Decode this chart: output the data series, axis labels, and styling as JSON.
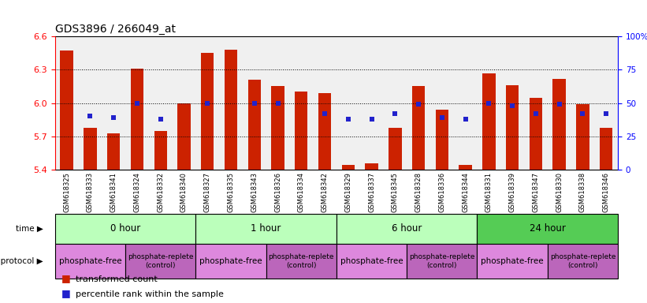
{
  "title": "GDS3896 / 266049_at",
  "samples": [
    "GSM618325",
    "GSM618333",
    "GSM618341",
    "GSM618324",
    "GSM618332",
    "GSM618340",
    "GSM618327",
    "GSM618335",
    "GSM618343",
    "GSM618326",
    "GSM618334",
    "GSM618342",
    "GSM618329",
    "GSM618337",
    "GSM618345",
    "GSM618328",
    "GSM618336",
    "GSM618344",
    "GSM618331",
    "GSM618339",
    "GSM618347",
    "GSM618330",
    "GSM618338",
    "GSM618346"
  ],
  "bar_values": [
    6.47,
    5.78,
    5.73,
    6.31,
    5.75,
    6.0,
    6.45,
    6.48,
    6.21,
    6.15,
    6.1,
    6.09,
    5.44,
    5.46,
    5.78,
    6.15,
    5.94,
    5.44,
    6.27,
    6.16,
    6.05,
    6.22,
    5.99,
    5.78
  ],
  "percentile_values": [
    null,
    0.4,
    0.39,
    0.5,
    0.38,
    null,
    0.5,
    null,
    0.5,
    0.5,
    null,
    0.42,
    0.38,
    0.38,
    0.42,
    0.49,
    0.39,
    0.38,
    0.5,
    0.48,
    0.42,
    0.49,
    0.42,
    0.42
  ],
  "time_groups": [
    {
      "label": "0 hour",
      "start": 0,
      "end": 6,
      "color": "#bbffbb"
    },
    {
      "label": "1 hour",
      "start": 6,
      "end": 12,
      "color": "#bbffbb"
    },
    {
      "label": "6 hour",
      "start": 12,
      "end": 18,
      "color": "#bbffbb"
    },
    {
      "label": "24 hour",
      "start": 18,
      "end": 24,
      "color": "#55cc55"
    }
  ],
  "growth_groups": [
    {
      "label": "phosphate-free",
      "start": 0,
      "end": 3,
      "color": "#dd88dd",
      "fontsize": 7.5
    },
    {
      "label": "phosphate-replete\n(control)",
      "start": 3,
      "end": 6,
      "color": "#bb66bb",
      "fontsize": 6.5
    },
    {
      "label": "phosphate-free",
      "start": 6,
      "end": 9,
      "color": "#dd88dd",
      "fontsize": 7.5
    },
    {
      "label": "phosphate-replete\n(control)",
      "start": 9,
      "end": 12,
      "color": "#bb66bb",
      "fontsize": 6.5
    },
    {
      "label": "phosphate-free",
      "start": 12,
      "end": 15,
      "color": "#dd88dd",
      "fontsize": 7.5
    },
    {
      "label": "phosphate-replete\n(control)",
      "start": 15,
      "end": 18,
      "color": "#bb66bb",
      "fontsize": 6.5
    },
    {
      "label": "phosphate-free",
      "start": 18,
      "end": 21,
      "color": "#dd88dd",
      "fontsize": 7.5
    },
    {
      "label": "phosphate-replete\n(control)",
      "start": 21,
      "end": 24,
      "color": "#bb66bb",
      "fontsize": 6.5
    }
  ],
  "ylim": [
    5.4,
    6.6
  ],
  "yticks_left": [
    5.4,
    5.7,
    6.0,
    6.3,
    6.6
  ],
  "yticks_right": [
    0,
    25,
    50,
    75,
    100
  ],
  "bar_color": "#cc2200",
  "percentile_color": "#2222cc",
  "bar_width": 0.55,
  "bg_color": "#f0f0f0"
}
